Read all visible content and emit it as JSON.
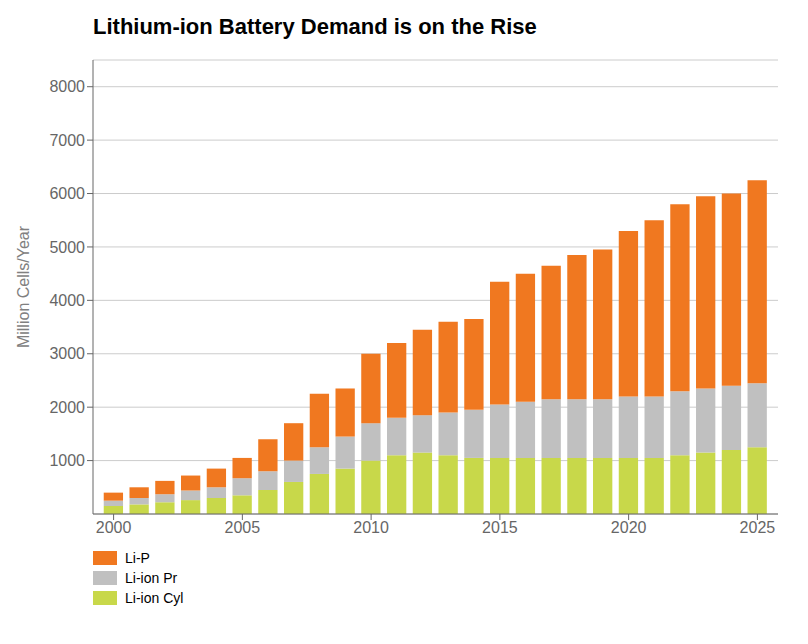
{
  "chart_data": {
    "type": "bar",
    "title": "Lithium-ion Battery Demand is on the Rise",
    "ylabel": "Million Cells/Year",
    "x": [
      2000,
      2001,
      2002,
      2003,
      2004,
      2005,
      2006,
      2007,
      2008,
      2009,
      2010,
      2011,
      2012,
      2013,
      2014,
      2015,
      2016,
      2017,
      2018,
      2019,
      2020,
      2021,
      2022,
      2023,
      2024,
      2025
    ],
    "series": [
      {
        "name": "Li-ion Cyl",
        "color": "#c8d84a",
        "values": [
          150,
          180,
          220,
          260,
          300,
          350,
          450,
          600,
          750,
          850,
          1000,
          1100,
          1150,
          1100,
          1050,
          1050,
          1050,
          1050,
          1050,
          1050,
          1050,
          1050,
          1100,
          1150,
          1200,
          1250
        ]
      },
      {
        "name": "Li-ion Pr",
        "color": "#c0c0c0",
        "values": [
          100,
          120,
          150,
          180,
          200,
          320,
          350,
          400,
          500,
          600,
          700,
          700,
          700,
          800,
          900,
          1000,
          1050,
          1100,
          1100,
          1100,
          1150,
          1150,
          1200,
          1200,
          1200,
          1200
        ]
      },
      {
        "name": "Li-P",
        "color": "#f07820",
        "values": [
          150,
          200,
          250,
          280,
          350,
          380,
          600,
          700,
          1000,
          900,
          1300,
          1400,
          1600,
          1700,
          1700,
          2300,
          2400,
          2500,
          2700,
          2800,
          3100,
          3300,
          3500,
          3600,
          3600,
          3800
        ]
      }
    ],
    "xlim": [
      1999.2,
      2025.8
    ],
    "xticks": [
      2000,
      2005,
      2010,
      2015,
      2020,
      2025
    ],
    "ylim": [
      0,
      8500
    ],
    "yticks": [
      1000,
      2000,
      3000,
      4000,
      5000,
      6000,
      7000,
      8000
    ],
    "stacked": true,
    "grid": true,
    "legend": "lower left"
  }
}
